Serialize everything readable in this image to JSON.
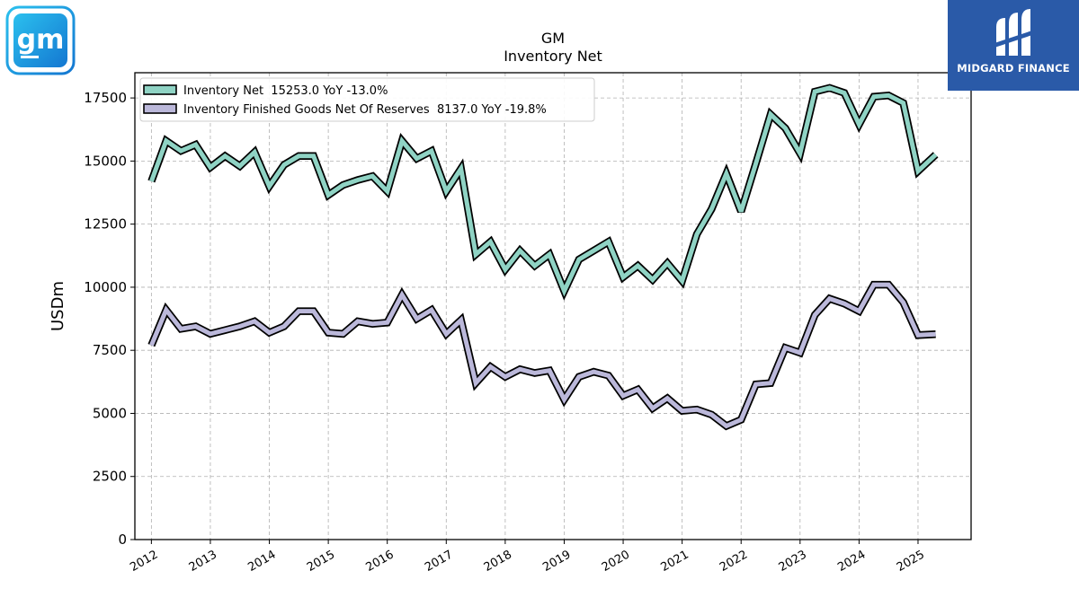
{
  "branding": {
    "company_logo_text": "gm",
    "watermark_text": "MIDGARD FINANCE",
    "watermark_bg": "#2a5aa8",
    "gm_logo_color": "#1ea7e1"
  },
  "chart_data": {
    "type": "line",
    "title": "GM",
    "subtitle": "Inventory Net",
    "xlabel": "",
    "ylabel": "USDm",
    "ylim": [
      0,
      18500
    ],
    "xlim": [
      2011.72,
      2025.9
    ],
    "yticks": [
      0,
      2500,
      5000,
      7500,
      10000,
      12500,
      15000,
      17500
    ],
    "ytick_labels": [
      "0",
      "2500",
      "5000",
      "7500",
      "10000",
      "12500",
      "15000",
      "17500"
    ],
    "xticks": [
      2012,
      2013,
      2014,
      2015,
      2016,
      2017,
      2018,
      2019,
      2020,
      2021,
      2022,
      2023,
      2024,
      2025
    ],
    "xtick_labels": [
      "2012",
      "2013",
      "2014",
      "2015",
      "2016",
      "2017",
      "2018",
      "2019",
      "2020",
      "2021",
      "2022",
      "2023",
      "2024",
      "2025"
    ],
    "grid": true,
    "legend_position": "top-left",
    "series": [
      {
        "name": "Inventory Net  15253.0 YoY -13.0%",
        "color": "#8fd3c4",
        "x": [
          2012.0,
          2012.25,
          2012.5,
          2012.75,
          2013.0,
          2013.25,
          2013.5,
          2013.75,
          2014.0,
          2014.25,
          2014.5,
          2014.75,
          2015.0,
          2015.25,
          2015.5,
          2015.75,
          2016.0,
          2016.25,
          2016.5,
          2016.75,
          2017.0,
          2017.25,
          2017.5,
          2017.75,
          2018.0,
          2018.25,
          2018.5,
          2018.75,
          2019.0,
          2019.25,
          2019.5,
          2019.75,
          2020.0,
          2020.25,
          2020.5,
          2020.75,
          2021.0,
          2021.25,
          2021.5,
          2021.75,
          2022.0,
          2022.25,
          2022.5,
          2022.75,
          2023.0,
          2023.25,
          2023.5,
          2023.75,
          2024.0,
          2024.25,
          2024.5,
          2024.75,
          2025.0,
          2025.3
        ],
        "y": [
          14200,
          15800,
          15400,
          15650,
          14750,
          15200,
          14800,
          15350,
          14000,
          14850,
          15200,
          15200,
          13650,
          14050,
          14250,
          14400,
          13800,
          15800,
          15100,
          15400,
          13800,
          14700,
          11300,
          11800,
          10700,
          11450,
          10850,
          11300,
          9850,
          11100,
          11450,
          11800,
          10400,
          10850,
          10300,
          10950,
          10250,
          12100,
          13100,
          14500,
          13000,
          14900,
          16850,
          16300,
          15300,
          17750,
          17900,
          17700,
          16450,
          17550,
          17600,
          17300,
          14600,
          15253
        ]
      },
      {
        "name": "Inventory Finished Goods Net Of Reserves  8137.0 YoY -19.8%",
        "color": "#bbb8da",
        "x": [
          2012.0,
          2012.25,
          2012.5,
          2012.75,
          2013.0,
          2013.25,
          2013.5,
          2013.75,
          2014.0,
          2014.25,
          2014.5,
          2014.75,
          2015.0,
          2015.25,
          2015.5,
          2015.75,
          2016.0,
          2016.25,
          2016.5,
          2016.75,
          2017.0,
          2017.25,
          2017.5,
          2017.75,
          2018.0,
          2018.25,
          2018.5,
          2018.75,
          2019.0,
          2019.25,
          2019.5,
          2019.75,
          2020.0,
          2020.25,
          2020.5,
          2020.75,
          2021.0,
          2021.25,
          2021.5,
          2021.75,
          2022.0,
          2022.25,
          2022.5,
          2022.75,
          2023.0,
          2023.25,
          2023.5,
          2023.75,
          2024.0,
          2024.25,
          2024.5,
          2024.75,
          2025.0,
          2025.3
        ],
        "y": [
          7700,
          9100,
          8350,
          8450,
          8150,
          8300,
          8450,
          8650,
          8200,
          8450,
          9050,
          9050,
          8200,
          8150,
          8650,
          8550,
          8600,
          9700,
          8750,
          9100,
          8150,
          8700,
          6200,
          6850,
          6450,
          6750,
          6600,
          6700,
          5550,
          6450,
          6650,
          6500,
          5700,
          5950,
          5200,
          5600,
          5100,
          5150,
          4950,
          4500,
          4750,
          6150,
          6200,
          7600,
          7400,
          8900,
          9550,
          9350,
          9050,
          10100,
          10100,
          9400,
          8100,
          8137
        ]
      }
    ]
  }
}
